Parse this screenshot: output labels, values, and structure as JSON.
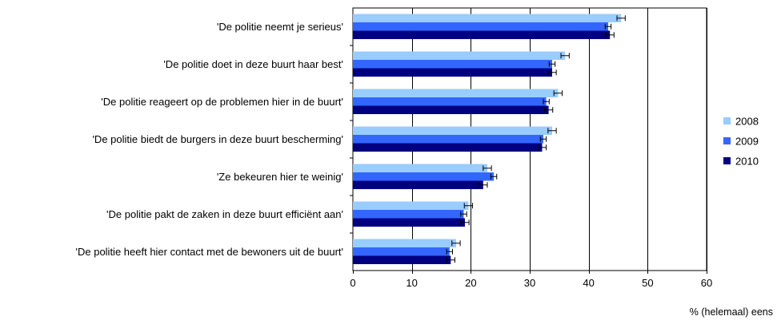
{
  "chart_data": {
    "type": "bar",
    "orientation": "horizontal",
    "categories": [
      "'De politie neemt je serieus'",
      "'De politie doet in deze buurt haar best'",
      "'De politie reageert op de problemen hier in de buurt'",
      "'De politie biedt de burgers in deze buurt bescherming'",
      "'Ze bekeuren hier te weinig'",
      "'De politie pakt de zaken in deze buurt efficiënt aan'",
      "'De politie heeft hier contact met de bewoners uit de buurt'"
    ],
    "series": [
      {
        "name": "2008",
        "color": "#99ccff",
        "values": [
          45.5,
          36.0,
          34.8,
          33.8,
          22.8,
          19.6,
          17.5
        ],
        "error": [
          0.7,
          0.7,
          0.7,
          0.7,
          0.7,
          0.7,
          0.7
        ]
      },
      {
        "name": "2009",
        "color": "#3366ff",
        "values": [
          43.3,
          33.8,
          32.8,
          32.3,
          23.9,
          18.8,
          16.4
        ],
        "error": [
          0.5,
          0.5,
          0.5,
          0.5,
          0.5,
          0.5,
          0.5
        ]
      },
      {
        "name": "2010",
        "color": "#000080",
        "values": [
          43.6,
          33.8,
          33.2,
          32.1,
          22.1,
          19.0,
          16.6
        ],
        "error": [
          0.7,
          0.7,
          0.7,
          0.7,
          0.7,
          0.7,
          0.7
        ]
      }
    ],
    "xlim": [
      0,
      60
    ],
    "xticks": [
      0,
      10,
      20,
      30,
      40,
      50,
      60
    ],
    "xlabel": "% (helemaal) eens",
    "grid": "vertical",
    "legend_position": "right"
  }
}
